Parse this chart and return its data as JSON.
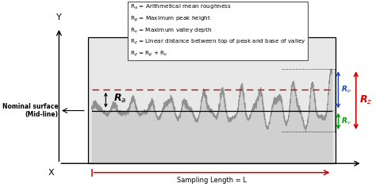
{
  "legend_lines": [
    "R$_a$ = Arithmetical mean roughness",
    "R$_p$ = Maximum peak height",
    "R$_v$ = Maximum valley depth",
    "R$_z$ = Linear distance between top of peak and base of valley",
    "R$_z$ = R$_p$ + R$_v$"
  ],
  "nominal_surface_label": "Nominal surface\n(Mid-line)",
  "x_label": "X",
  "y_label": "Y",
  "sampling_label": "Sampling Length = L",
  "Ra_label": "R$_a$",
  "Rp_label": "R$_p$",
  "Rv_label": "R$_v$",
  "Rz_label": "R$_z$",
  "mid_line": 0.0,
  "Ra_level": 0.28,
  "bg_color": "#e8e8e8",
  "wave_color": "#909090",
  "fill_color": "#d0d0d0",
  "Ra_color": "#cc0000",
  "Rp_color": "#1a3fcc",
  "Rv_color": "#009900",
  "Rz_color": "#cc0000",
  "box_color": "#ffffff",
  "box_edge_color": "#555555"
}
